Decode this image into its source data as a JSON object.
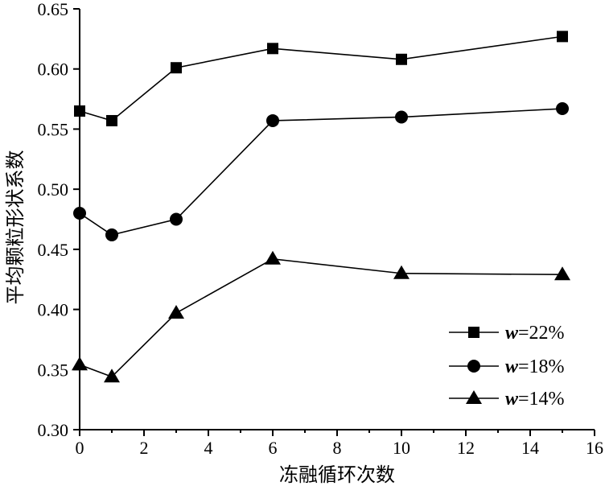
{
  "chart_data": {
    "type": "line",
    "title": "",
    "xlabel": "冻融循环次数",
    "ylabel": "平均颗粒形状系数",
    "xlim": [
      0,
      16
    ],
    "ylim": [
      0.3,
      0.65
    ],
    "x_ticks": [
      0,
      2,
      4,
      6,
      8,
      10,
      12,
      14,
      16
    ],
    "y_ticks": [
      0.3,
      0.35,
      0.4,
      0.45,
      0.5,
      0.55,
      0.6,
      0.65
    ],
    "grid": false,
    "legend_position": "bottom-right",
    "series": [
      {
        "var": "w",
        "suffix": "=22%",
        "marker": "square",
        "x": [
          0,
          1,
          3,
          6,
          10,
          15
        ],
        "y": [
          0.565,
          0.557,
          0.601,
          0.617,
          0.608,
          0.627
        ]
      },
      {
        "var": "w",
        "suffix": "=18%",
        "marker": "circle",
        "x": [
          0,
          1,
          3,
          6,
          10,
          15
        ],
        "y": [
          0.48,
          0.462,
          0.475,
          0.557,
          0.56,
          0.567
        ]
      },
      {
        "var": "w",
        "suffix": "=14%",
        "marker": "triangle",
        "x": [
          0,
          1,
          3,
          6,
          10,
          15
        ],
        "y": [
          0.354,
          0.344,
          0.397,
          0.442,
          0.43,
          0.429
        ]
      }
    ]
  }
}
